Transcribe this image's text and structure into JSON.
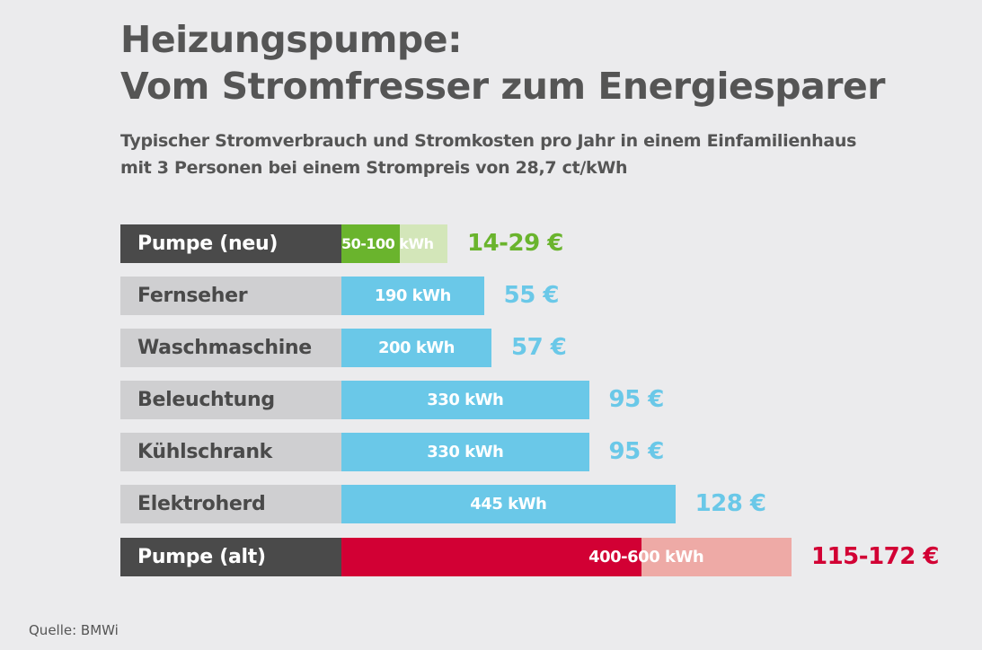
{
  "chart_data": {
    "type": "bar",
    "orientation": "horizontal",
    "title": "Heizungspumpe:\nVom Stromfresser zum Energiesparer",
    "subtitle": "Typischer Stromverbrauch und Stromkosten pro Jahr in einem Einfamilienhaus\nmit 3 Personen bei einem Strompreis von 28,7 ct/kWh",
    "source": "Quelle: BMWi",
    "unit": "kWh",
    "rows": [
      {
        "category": "Pumpe (neu)",
        "min": 50,
        "max": 100,
        "value_label": "50-100 kWh",
        "cost": "14-29 €",
        "highlight": "dark",
        "color": "#6ab42d",
        "range_color": "#d3e6b9"
      },
      {
        "category": "Fernseher",
        "value": 190,
        "value_label": "190 kWh",
        "cost": "55 €",
        "color": "#6ac8e8"
      },
      {
        "category": "Waschmaschine",
        "value": 200,
        "value_label": "200 kWh",
        "cost": "57 €",
        "color": "#6ac8e8"
      },
      {
        "category": "Beleuchtung",
        "value": 330,
        "value_label": "330 kWh",
        "cost": "95 €",
        "color": "#6ac8e8"
      },
      {
        "category": "Kühlschrank",
        "value": 330,
        "value_label": "330 kWh",
        "cost": "95 €",
        "color": "#6ac8e8"
      },
      {
        "category": "Elektroherd",
        "value": 445,
        "value_label": "445 kWh",
        "cost": "128 €",
        "color": "#6ac8e8"
      },
      {
        "category": "Pumpe (alt)",
        "min": 400,
        "max": 600,
        "value_label": "400-600 kWh",
        "cost": "115-172 €",
        "highlight": "dark",
        "color": "#d20034",
        "range_color": "#eeaaa6"
      }
    ]
  }
}
